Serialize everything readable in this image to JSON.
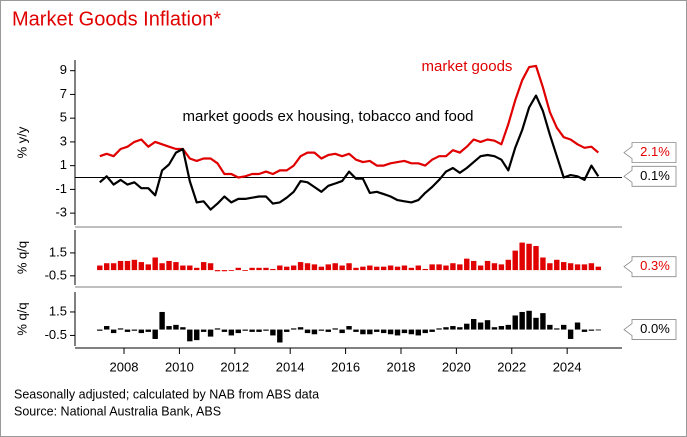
{
  "title": "Market Goods Inflation*",
  "footnotes": [
    "Seasonally adjusted; calculated by NAB from ABS data",
    "Source: National Australia Bank, ABS"
  ],
  "chart_data": [
    {
      "type": "line",
      "ylabel": "% y/y",
      "ylim": [
        -4,
        9.9
      ],
      "yticks": [
        -3,
        -1,
        1,
        3,
        5,
        7,
        9
      ],
      "zero_line": true,
      "xlim": [
        2006.23,
        2025.98
      ],
      "x": [
        2007.125,
        2007.375,
        2007.625,
        2007.875,
        2008.125,
        2008.375,
        2008.625,
        2008.875,
        2009.125,
        2009.375,
        2009.625,
        2009.875,
        2010.125,
        2010.375,
        2010.625,
        2010.875,
        2011.125,
        2011.375,
        2011.625,
        2011.875,
        2012.125,
        2012.375,
        2012.625,
        2012.875,
        2013.125,
        2013.375,
        2013.625,
        2013.875,
        2014.125,
        2014.375,
        2014.625,
        2014.875,
        2015.125,
        2015.375,
        2015.625,
        2015.875,
        2016.125,
        2016.375,
        2016.625,
        2016.875,
        2017.125,
        2017.375,
        2017.625,
        2017.875,
        2018.125,
        2018.375,
        2018.625,
        2018.875,
        2019.125,
        2019.375,
        2019.625,
        2019.875,
        2020.125,
        2020.375,
        2020.625,
        2020.875,
        2021.125,
        2021.375,
        2021.625,
        2021.875,
        2022.125,
        2022.375,
        2022.625,
        2022.875,
        2023.125,
        2023.375,
        2023.625,
        2023.875,
        2024.125,
        2024.375,
        2024.625,
        2024.875,
        2025.125
      ],
      "series": [
        {
          "name": "market goods",
          "color": "#e00000",
          "last_value_label": "2.1%",
          "values": [
            1.8,
            2.0,
            1.8,
            2.4,
            2.6,
            3.0,
            3.2,
            2.6,
            3.0,
            2.8,
            2.6,
            2.4,
            2.4,
            1.6,
            1.4,
            1.6,
            1.6,
            1.2,
            0.3,
            0.3,
            0.0,
            0.1,
            0.3,
            0.3,
            0.5,
            0.3,
            0.6,
            0.6,
            1.0,
            1.8,
            2.1,
            2.1,
            1.6,
            1.9,
            2.0,
            1.8,
            2.0,
            1.5,
            1.3,
            1.4,
            1.0,
            1.0,
            1.2,
            1.3,
            1.4,
            1.2,
            1.2,
            1.0,
            1.5,
            1.8,
            1.8,
            2.3,
            2.1,
            2.6,
            3.2,
            3.0,
            3.2,
            3.1,
            2.8,
            4.5,
            6.5,
            8.2,
            9.3,
            9.4,
            7.6,
            5.5,
            4.2,
            3.4,
            3.2,
            2.8,
            2.5,
            2.6,
            2.1
          ]
        },
        {
          "name": "market goods ex housing, tobacco and food",
          "color": "#000000",
          "last_value_label": "0.1%",
          "values": [
            -0.4,
            0.1,
            -0.6,
            -0.2,
            -0.6,
            -0.4,
            -0.9,
            -0.9,
            -1.5,
            0.6,
            1.1,
            2.1,
            2.4,
            -0.3,
            -2.1,
            -2.0,
            -2.7,
            -2.2,
            -1.6,
            -2.1,
            -1.8,
            -1.8,
            -1.7,
            -1.6,
            -1.6,
            -2.2,
            -2.1,
            -1.7,
            -1.2,
            -0.3,
            -0.4,
            -0.8,
            -1.2,
            -0.7,
            -0.5,
            -0.3,
            0.5,
            -0.1,
            -0.1,
            -1.3,
            -1.2,
            -1.4,
            -1.6,
            -1.9,
            -2.0,
            -2.1,
            -1.9,
            -1.3,
            -0.8,
            -0.2,
            0.5,
            0.8,
            0.4,
            0.8,
            1.3,
            1.8,
            1.9,
            1.8,
            1.5,
            0.6,
            2.5,
            4.0,
            5.9,
            6.9,
            5.6,
            3.6,
            1.8,
            0.0,
            0.2,
            0.1,
            -0.2,
            1.0,
            0.1
          ]
        }
      ]
    },
    {
      "type": "bar",
      "ylabel": "% q/q",
      "ylim": [
        -1.3,
        3.5
      ],
      "yticks": [
        1.5,
        -0.5
      ],
      "xlim": [
        2006.23,
        2025.98
      ],
      "x": [
        2007.125,
        2007.375,
        2007.625,
        2007.875,
        2008.125,
        2008.375,
        2008.625,
        2008.875,
        2009.125,
        2009.375,
        2009.625,
        2009.875,
        2010.125,
        2010.375,
        2010.625,
        2010.875,
        2011.125,
        2011.375,
        2011.625,
        2011.875,
        2012.125,
        2012.375,
        2012.625,
        2012.875,
        2013.125,
        2013.375,
        2013.625,
        2013.875,
        2014.125,
        2014.375,
        2014.625,
        2014.875,
        2015.125,
        2015.375,
        2015.625,
        2015.875,
        2016.125,
        2016.375,
        2016.625,
        2016.875,
        2017.125,
        2017.375,
        2017.625,
        2017.875,
        2018.125,
        2018.375,
        2018.625,
        2018.875,
        2019.125,
        2019.375,
        2019.625,
        2019.875,
        2020.125,
        2020.375,
        2020.625,
        2020.875,
        2021.125,
        2021.375,
        2021.625,
        2021.875,
        2022.125,
        2022.375,
        2022.625,
        2022.875,
        2023.125,
        2023.375,
        2023.625,
        2023.875,
        2024.125,
        2024.375,
        2024.625,
        2024.875,
        2025.125
      ],
      "series": [
        {
          "color": "#e00000",
          "last_value_label": "0.3%",
          "values": [
            0.4,
            0.6,
            0.6,
            0.8,
            0.8,
            0.9,
            0.7,
            0.5,
            1.1,
            0.6,
            0.8,
            0.7,
            0.4,
            0.4,
            0.2,
            0.7,
            0.6,
            -0.1,
            -0.1,
            0.0,
            0.2,
            0.0,
            0.2,
            0.2,
            0.2,
            0.1,
            0.4,
            0.3,
            0.4,
            0.7,
            0.6,
            0.5,
            0.3,
            0.5,
            0.6,
            0.4,
            0.6,
            0.2,
            0.3,
            0.4,
            0.3,
            0.3,
            0.4,
            0.3,
            0.4,
            0.2,
            0.4,
            0.1,
            0.5,
            0.5,
            0.4,
            0.6,
            0.5,
            1.0,
            0.8,
            0.4,
            0.8,
            0.6,
            0.5,
            0.9,
            1.7,
            2.4,
            2.3,
            2.1,
            1.1,
            0.6,
            0.9,
            0.7,
            0.6,
            0.5,
            0.5,
            0.6,
            0.3
          ]
        }
      ]
    },
    {
      "type": "bar",
      "ylabel": "% q/q",
      "ylim": [
        -1.4,
        3.2
      ],
      "yticks": [
        1.5,
        -0.5
      ],
      "xlim": [
        2006.23,
        2025.98
      ],
      "xticks": [
        2008,
        2010,
        2012,
        2014,
        2016,
        2018,
        2020,
        2022,
        2024
      ],
      "x": [
        2007.125,
        2007.375,
        2007.625,
        2007.875,
        2008.125,
        2008.375,
        2008.625,
        2008.875,
        2009.125,
        2009.375,
        2009.625,
        2009.875,
        2010.125,
        2010.375,
        2010.625,
        2010.875,
        2011.125,
        2011.375,
        2011.625,
        2011.875,
        2012.125,
        2012.375,
        2012.625,
        2012.875,
        2013.125,
        2013.375,
        2013.625,
        2013.875,
        2014.125,
        2014.375,
        2014.625,
        2014.875,
        2015.125,
        2015.375,
        2015.625,
        2015.875,
        2016.125,
        2016.375,
        2016.625,
        2016.875,
        2017.125,
        2017.375,
        2017.625,
        2017.875,
        2018.125,
        2018.375,
        2018.625,
        2018.875,
        2019.125,
        2019.375,
        2019.625,
        2019.875,
        2020.125,
        2020.375,
        2020.625,
        2020.875,
        2021.125,
        2021.375,
        2021.625,
        2021.875,
        2022.125,
        2022.375,
        2022.625,
        2022.875,
        2023.125,
        2023.375,
        2023.625,
        2023.875,
        2024.125,
        2024.375,
        2024.625,
        2024.875,
        2025.125
      ],
      "series": [
        {
          "color": "#000000",
          "last_value_label": "0.0%",
          "values": [
            -0.1,
            0.3,
            -0.3,
            0.1,
            -0.2,
            -0.1,
            -0.3,
            -0.2,
            -0.8,
            1.5,
            0.3,
            0.4,
            0.2,
            -1.0,
            -0.9,
            -0.2,
            -0.6,
            0.1,
            -0.2,
            -0.5,
            -0.3,
            -0.1,
            -0.2,
            -0.2,
            -0.1,
            -0.5,
            -1.1,
            -0.2,
            0.1,
            0.2,
            -0.3,
            -0.4,
            -0.1,
            -0.2,
            0.1,
            -0.3,
            0.3,
            -0.2,
            -0.4,
            -0.4,
            -0.2,
            -0.3,
            -0.4,
            -0.5,
            -0.3,
            -0.4,
            -0.5,
            -0.3,
            -0.2,
            0.1,
            0.2,
            0.3,
            0.2,
            0.5,
            0.9,
            0.6,
            0.8,
            0.2,
            0.3,
            0.4,
            1.2,
            1.5,
            1.6,
            1.0,
            1.4,
            0.4,
            0.1,
            0.4,
            -0.8,
            0.6,
            -0.2,
            -0.1,
            0.0
          ]
        }
      ]
    }
  ]
}
